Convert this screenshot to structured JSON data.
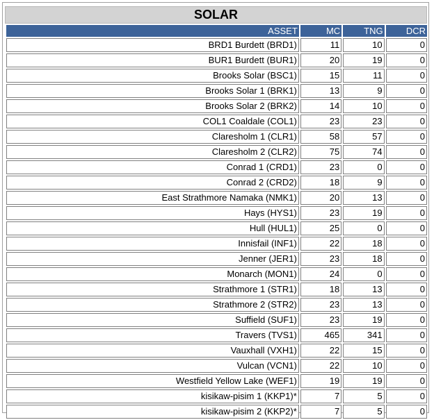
{
  "title": "SOLAR",
  "columns": [
    "ASSET",
    "MC",
    "TNG",
    "DCR"
  ],
  "rows": [
    {
      "asset": "BRD1 Burdett (BRD1)",
      "mc": "11",
      "tng": "10",
      "dcr": "0"
    },
    {
      "asset": "BUR1 Burdett (BUR1)",
      "mc": "20",
      "tng": "19",
      "dcr": "0"
    },
    {
      "asset": "Brooks Solar (BSC1)",
      "mc": "15",
      "tng": "11",
      "dcr": "0"
    },
    {
      "asset": "Brooks Solar 1 (BRK1)",
      "mc": "13",
      "tng": "9",
      "dcr": "0"
    },
    {
      "asset": "Brooks Solar 2 (BRK2)",
      "mc": "14",
      "tng": "10",
      "dcr": "0"
    },
    {
      "asset": "COL1 Coaldale (COL1)",
      "mc": "23",
      "tng": "23",
      "dcr": "0"
    },
    {
      "asset": "Claresholm 1 (CLR1)",
      "mc": "58",
      "tng": "57",
      "dcr": "0"
    },
    {
      "asset": "Claresholm 2 (CLR2)",
      "mc": "75",
      "tng": "74",
      "dcr": "0"
    },
    {
      "asset": "Conrad 1 (CRD1)",
      "mc": "23",
      "tng": "0",
      "dcr": "0"
    },
    {
      "asset": "Conrad 2 (CRD2)",
      "mc": "18",
      "tng": "9",
      "dcr": "0"
    },
    {
      "asset": "East Strathmore Namaka (NMK1)",
      "mc": "20",
      "tng": "13",
      "dcr": "0"
    },
    {
      "asset": "Hays (HYS1)",
      "mc": "23",
      "tng": "19",
      "dcr": "0"
    },
    {
      "asset": "Hull (HUL1)",
      "mc": "25",
      "tng": "0",
      "dcr": "0"
    },
    {
      "asset": "Innisfail (INF1)",
      "mc": "22",
      "tng": "18",
      "dcr": "0"
    },
    {
      "asset": "Jenner (JER1)",
      "mc": "23",
      "tng": "18",
      "dcr": "0"
    },
    {
      "asset": "Monarch (MON1)",
      "mc": "24",
      "tng": "0",
      "dcr": "0"
    },
    {
      "asset": "Strathmore 1 (STR1)",
      "mc": "18",
      "tng": "13",
      "dcr": "0"
    },
    {
      "asset": "Strathmore 2 (STR2)",
      "mc": "23",
      "tng": "13",
      "dcr": "0"
    },
    {
      "asset": "Suffield (SUF1)",
      "mc": "23",
      "tng": "19",
      "dcr": "0"
    },
    {
      "asset": "Travers (TVS1)",
      "mc": "465",
      "tng": "341",
      "dcr": "0"
    },
    {
      "asset": "Vauxhall (VXH1)",
      "mc": "22",
      "tng": "15",
      "dcr": "0"
    },
    {
      "asset": "Vulcan (VCN1)",
      "mc": "22",
      "tng": "10",
      "dcr": "0"
    },
    {
      "asset": "Westfield Yellow Lake (WEF1)",
      "mc": "19",
      "tng": "19",
      "dcr": "0"
    },
    {
      "asset": "kisikaw-pisim 1 (KKP1)*",
      "mc": "7",
      "tng": "5",
      "dcr": "0"
    },
    {
      "asset": "kisikaw-pisim 2 (KKP2)*",
      "mc": "7",
      "tng": "5",
      "dcr": "0"
    }
  ],
  "colors": {
    "header_bg": "#3d6399",
    "title_bg": "#d3d3d3",
    "cell_border": "#7f7f7f"
  }
}
